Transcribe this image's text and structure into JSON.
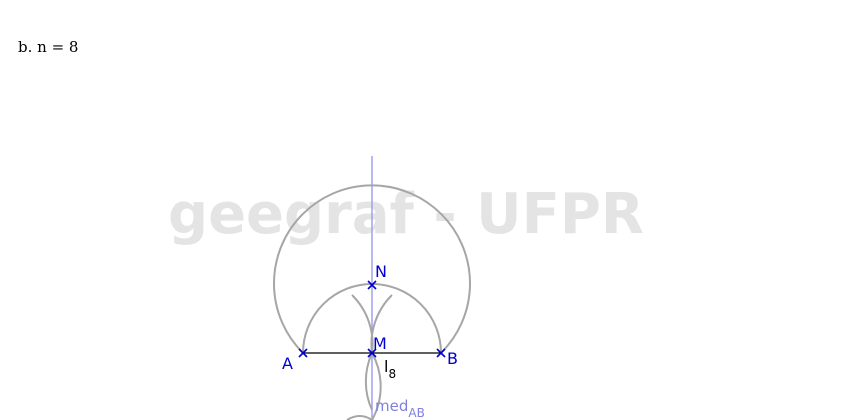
{
  "caption": "b. n = 8",
  "watermark": "geegraf - UFPR",
  "points": {
    "A": "A",
    "B": "B",
    "M": "M",
    "N": "N"
  },
  "segment_label": {
    "main": "l",
    "sub": "8"
  },
  "bisector_label": {
    "main": "med",
    "sub": "AB"
  },
  "colors": {
    "point": "#0000cc",
    "arc": "#a6a6a6",
    "bisector": "#a0a0f0",
    "segment": "#000000",
    "watermark": "#d9d9d9"
  }
}
